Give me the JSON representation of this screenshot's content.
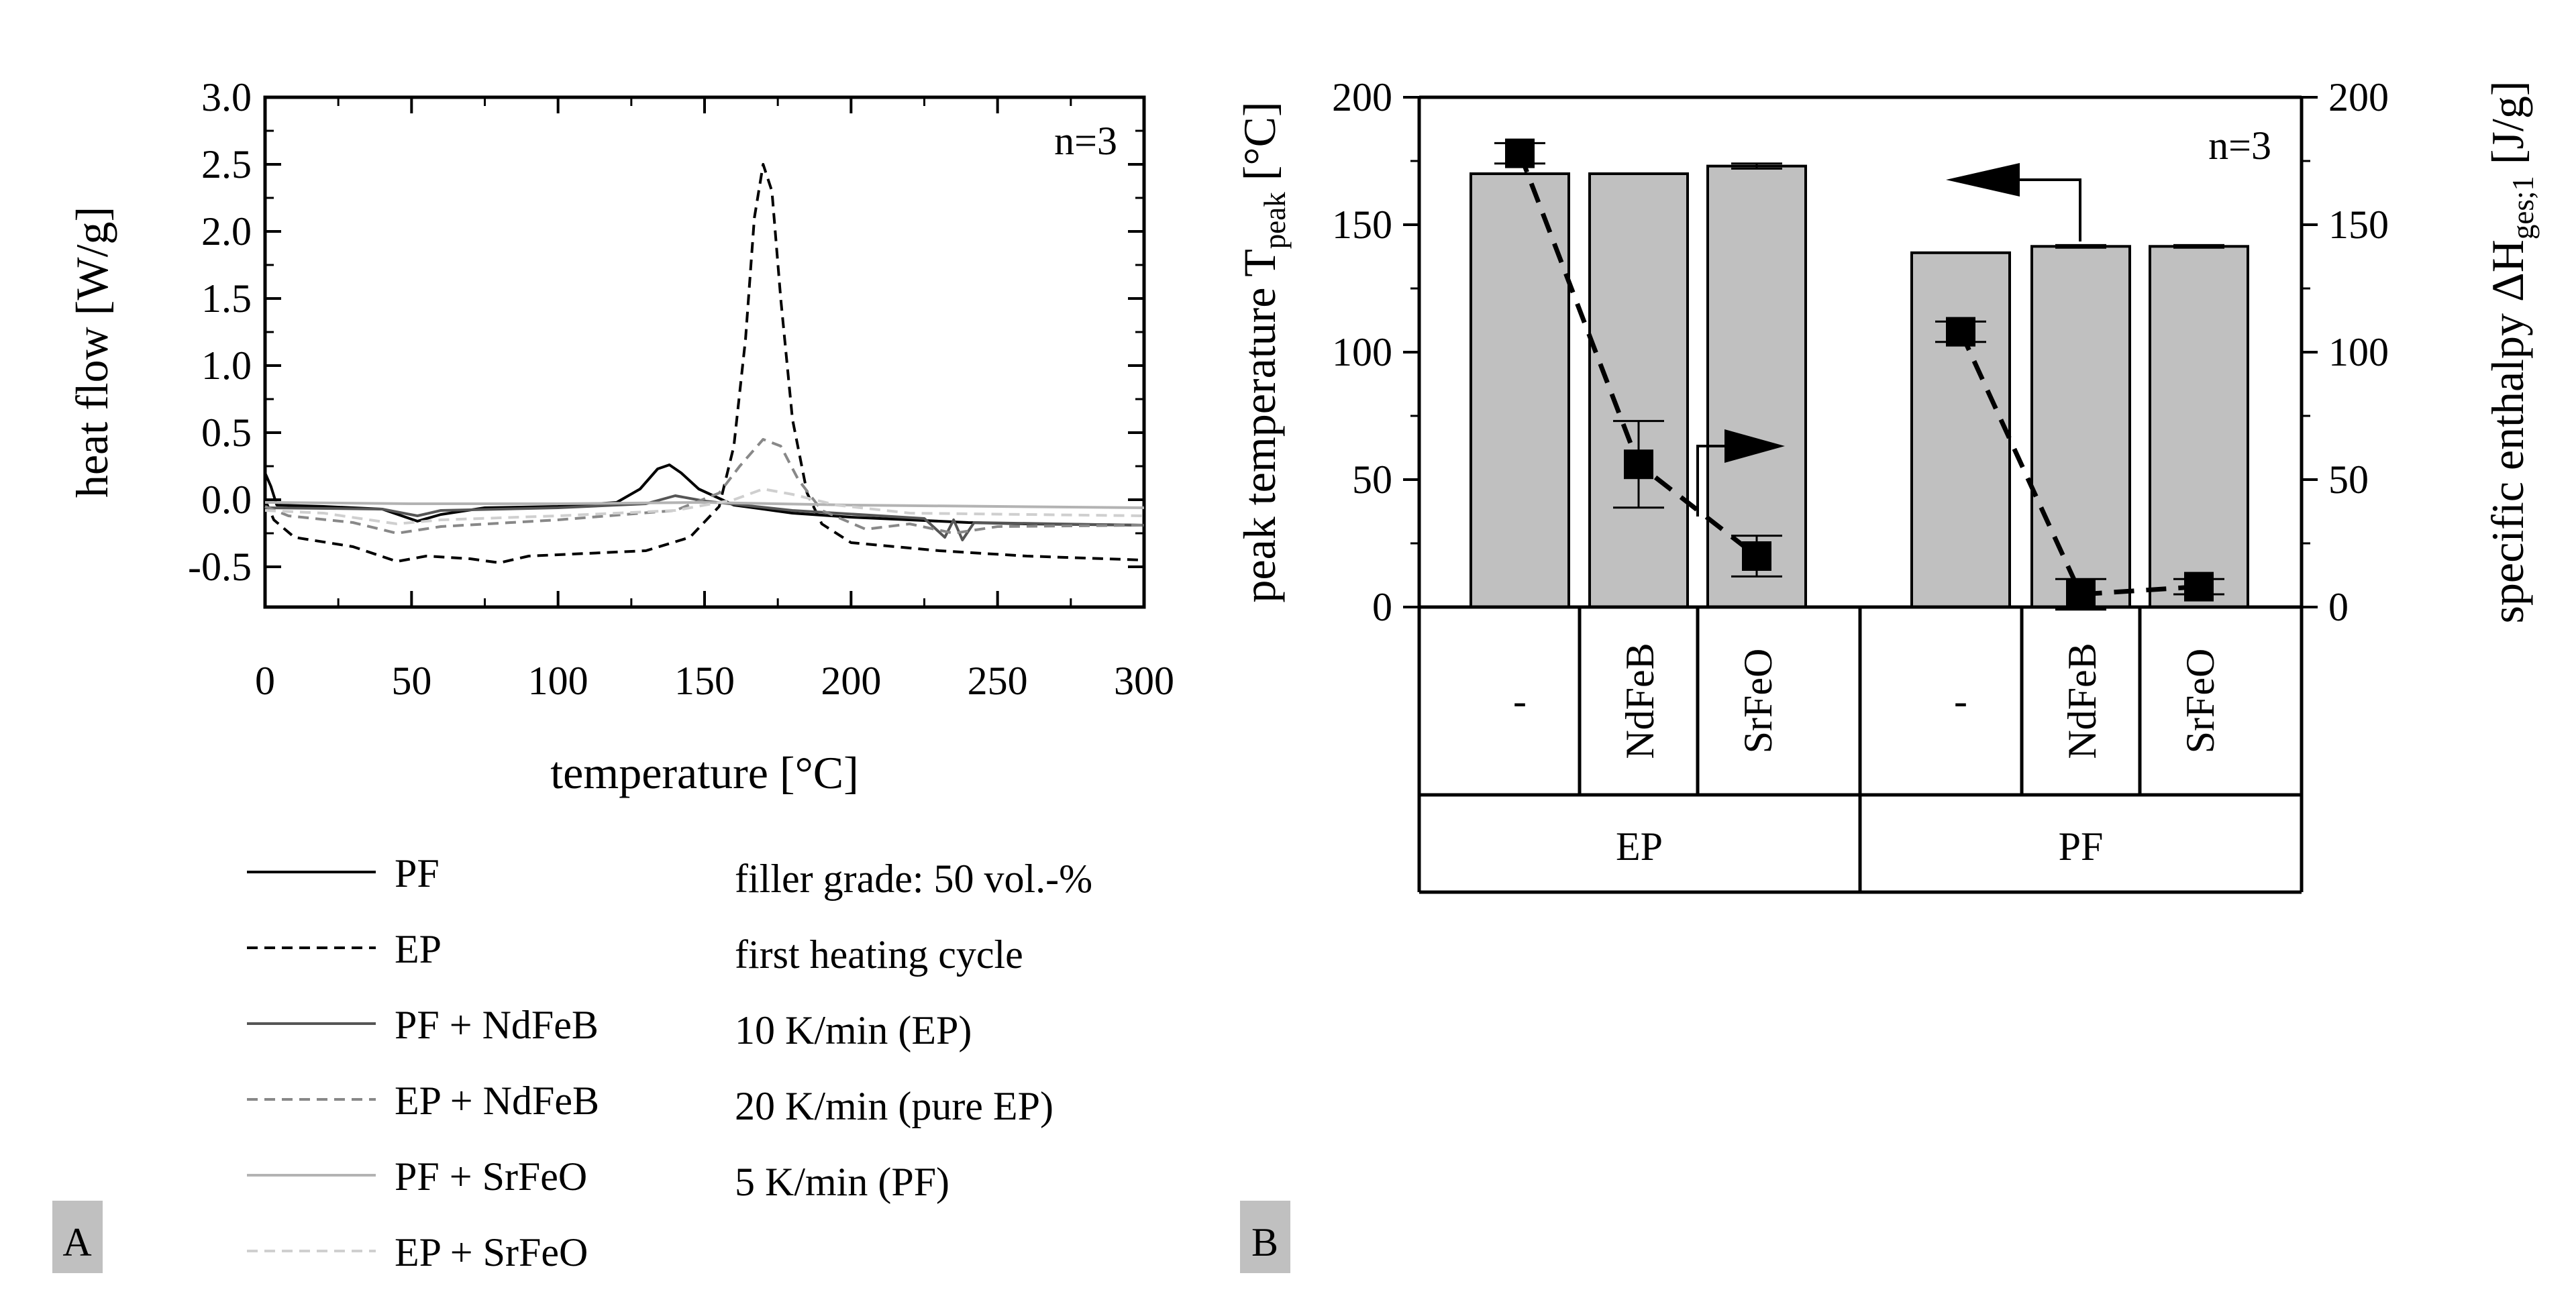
{
  "panels": {
    "a_label": "A",
    "b_label": "B"
  },
  "chart_data": [
    {
      "type": "line",
      "panel": "A",
      "annotation": "n=3",
      "xlabel": "temperature [°C]",
      "ylabel": "heat flow [W/g]",
      "xlim": [
        0,
        300
      ],
      "ylim": [
        -0.8,
        3.0
      ],
      "xticks": [
        0,
        50,
        100,
        150,
        200,
        250,
        300
      ],
      "yticks": [
        -0.5,
        0.0,
        0.5,
        1.0,
        1.5,
        2.0,
        2.5,
        3.0
      ],
      "ytick_labels": [
        "-0.5",
        "0.0",
        "0.5",
        "1.0",
        "1.5",
        "2.0",
        "2.5",
        "3.0"
      ],
      "legend_position": "bottom-left",
      "conditions": [
        "filler grade: 50 vol.-%",
        "first heating cycle",
        "10 K/min (EP)",
        "20 K/min (pure EP)",
        "5 K/min (PF)"
      ],
      "series": [
        {
          "name": "PF",
          "color": "#000000",
          "dash": "solid",
          "points": [
            [
              0,
              0.2
            ],
            [
              2,
              0.1
            ],
            [
              4,
              -0.04
            ],
            [
              20,
              -0.05
            ],
            [
              40,
              -0.07
            ],
            [
              52,
              -0.16
            ],
            [
              60,
              -0.11
            ],
            [
              75,
              -0.06
            ],
            [
              100,
              -0.05
            ],
            [
              120,
              -0.02
            ],
            [
              128,
              0.08
            ],
            [
              134,
              0.23
            ],
            [
              138,
              0.26
            ],
            [
              142,
              0.2
            ],
            [
              148,
              0.08
            ],
            [
              160,
              -0.04
            ],
            [
              180,
              -0.1
            ],
            [
              200,
              -0.13
            ],
            [
              220,
              -0.15
            ],
            [
              240,
              -0.17
            ],
            [
              260,
              -0.18
            ],
            [
              300,
              -0.19
            ]
          ]
        },
        {
          "name": "EP",
          "color": "#000000",
          "dash": "dashed",
          "points": [
            [
              0,
              0.0
            ],
            [
              3,
              -0.15
            ],
            [
              10,
              -0.28
            ],
            [
              30,
              -0.35
            ],
            [
              45,
              -0.46
            ],
            [
              55,
              -0.42
            ],
            [
              70,
              -0.44
            ],
            [
              80,
              -0.47
            ],
            [
              90,
              -0.42
            ],
            [
              110,
              -0.4
            ],
            [
              130,
              -0.38
            ],
            [
              145,
              -0.28
            ],
            [
              155,
              -0.05
            ],
            [
              160,
              0.4
            ],
            [
              164,
              1.2
            ],
            [
              167,
              2.1
            ],
            [
              170,
              2.5
            ],
            [
              173,
              2.3
            ],
            [
              176,
              1.5
            ],
            [
              180,
              0.6
            ],
            [
              185,
              0.05
            ],
            [
              190,
              -0.18
            ],
            [
              200,
              -0.32
            ],
            [
              230,
              -0.38
            ],
            [
              260,
              -0.42
            ],
            [
              300,
              -0.45
            ]
          ]
        },
        {
          "name": "PF + NdFeB",
          "color": "#555555",
          "dash": "solid",
          "points": [
            [
              0,
              -0.06
            ],
            [
              40,
              -0.07
            ],
            [
              52,
              -0.12
            ],
            [
              60,
              -0.08
            ],
            [
              100,
              -0.06
            ],
            [
              130,
              -0.03
            ],
            [
              140,
              0.03
            ],
            [
              150,
              -0.01
            ],
            [
              180,
              -0.08
            ],
            [
              225,
              -0.14
            ],
            [
              232,
              -0.28
            ],
            [
              235,
              -0.15
            ],
            [
              238,
              -0.3
            ],
            [
              242,
              -0.17
            ],
            [
              270,
              -0.18
            ],
            [
              300,
              -0.19
            ]
          ]
        },
        {
          "name": "EP + NdFeB",
          "color": "#888888",
          "dash": "dashed",
          "points": [
            [
              0,
              -0.05
            ],
            [
              8,
              -0.12
            ],
            [
              30,
              -0.17
            ],
            [
              45,
              -0.25
            ],
            [
              60,
              -0.2
            ],
            [
              100,
              -0.15
            ],
            [
              140,
              -0.08
            ],
            [
              155,
              0.05
            ],
            [
              162,
              0.25
            ],
            [
              170,
              0.45
            ],
            [
              176,
              0.4
            ],
            [
              182,
              0.15
            ],
            [
              190,
              -0.08
            ],
            [
              205,
              -0.22
            ],
            [
              220,
              -0.18
            ],
            [
              235,
              -0.25
            ],
            [
              250,
              -0.2
            ],
            [
              300,
              -0.19
            ]
          ]
        },
        {
          "name": "PF + SrFeO",
          "color": "#b3b3b3",
          "dash": "solid",
          "points": [
            [
              0,
              -0.02
            ],
            [
              50,
              -0.03
            ],
            [
              100,
              -0.03
            ],
            [
              150,
              -0.02
            ],
            [
              200,
              -0.04
            ],
            [
              250,
              -0.05
            ],
            [
              300,
              -0.06
            ]
          ]
        },
        {
          "name": "EP + SrFeO",
          "color": "#cfcfcf",
          "dash": "dashed",
          "points": [
            [
              0,
              -0.08
            ],
            [
              20,
              -0.1
            ],
            [
              45,
              -0.18
            ],
            [
              60,
              -0.15
            ],
            [
              100,
              -0.12
            ],
            [
              140,
              -0.08
            ],
            [
              160,
              0.0
            ],
            [
              170,
              0.08
            ],
            [
              180,
              0.04
            ],
            [
              195,
              -0.04
            ],
            [
              220,
              -0.1
            ],
            [
              300,
              -0.12
            ]
          ]
        }
      ]
    },
    {
      "type": "bar",
      "panel": "B",
      "annotation": "n=3",
      "ylabel_left": "peak temperature T",
      "ylabel_left_sub": "peak",
      "ylabel_left_unit": " [°C]",
      "ylabel_right": "specific enthalpy ΔH",
      "ylabel_right_sub": "ges;1",
      "ylabel_right_unit": " [J/g]",
      "ylim": [
        0,
        200
      ],
      "yticks": [
        0,
        50,
        100,
        150,
        200
      ],
      "fillers": [
        "-",
        "NdFeB",
        "SrFeO",
        "-",
        "NdFeB",
        "SrFeO"
      ],
      "groups": [
        "EP",
        "PF"
      ],
      "bar_color": "#c0c0c0",
      "peak_temperature": [
        170,
        170,
        173,
        139,
        141.5,
        141.5
      ],
      "peak_temperature_error": [
        0,
        0,
        1,
        0,
        0.5,
        0.5
      ],
      "specific_enthalpy": [
        178,
        56,
        20,
        108,
        5,
        8
      ],
      "specific_enthalpy_error": [
        4,
        17,
        8,
        4,
        6,
        3
      ]
    }
  ]
}
